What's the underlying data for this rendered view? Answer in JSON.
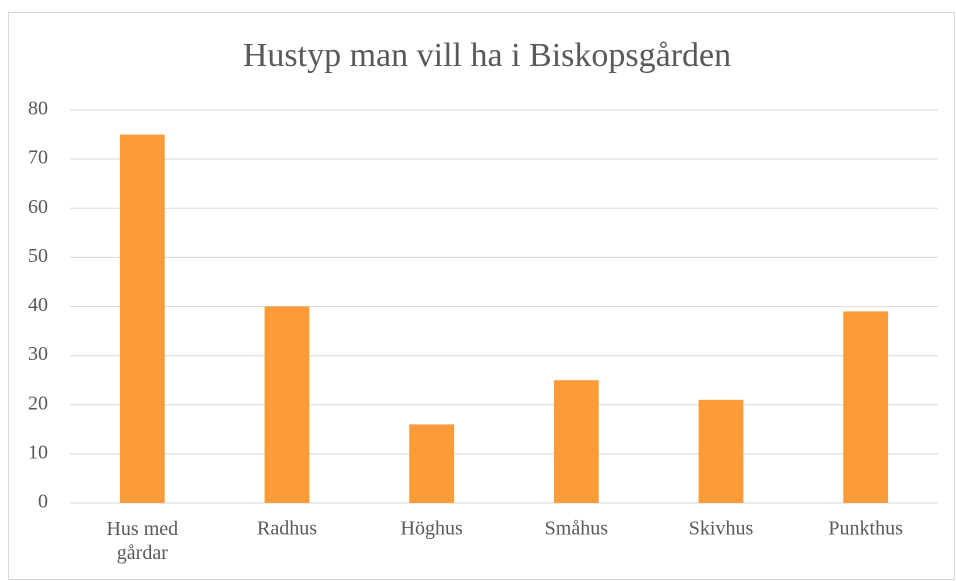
{
  "chart_data": {
    "type": "bar",
    "title": "Hustyp man vill ha i Biskopsgården",
    "categories": [
      "Hus med gårdar",
      "Radhus",
      "Höghus",
      "Småhus",
      "Skivhus",
      "Punkthus"
    ],
    "values": [
      75,
      40,
      16,
      25,
      21,
      39
    ],
    "color": "#fd9b38",
    "ylim": [
      0,
      80
    ],
    "yticks": [
      0,
      10,
      20,
      30,
      40,
      50,
      60,
      70,
      80
    ],
    "grid": true
  }
}
